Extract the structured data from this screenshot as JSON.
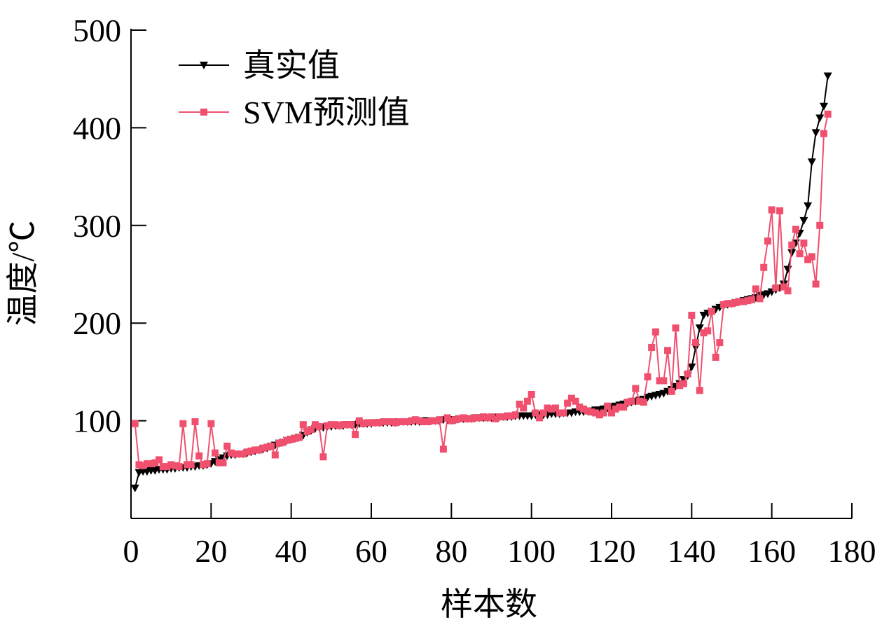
{
  "chart_data": {
    "type": "line",
    "xlabel": "样本数",
    "ylabel": "温度/℃",
    "x": [
      1,
      2,
      3,
      4,
      5,
      6,
      7,
      8,
      9,
      10,
      11,
      12,
      13,
      14,
      15,
      16,
      17,
      18,
      19,
      20,
      21,
      22,
      23,
      24,
      25,
      26,
      27,
      28,
      29,
      30,
      31,
      32,
      33,
      34,
      35,
      36,
      37,
      38,
      39,
      40,
      41,
      42,
      43,
      44,
      45,
      46,
      47,
      48,
      49,
      50,
      51,
      52,
      53,
      54,
      55,
      56,
      57,
      58,
      59,
      60,
      61,
      62,
      63,
      64,
      65,
      66,
      67,
      68,
      69,
      70,
      71,
      72,
      73,
      74,
      75,
      76,
      77,
      78,
      79,
      80,
      81,
      82,
      83,
      84,
      85,
      86,
      87,
      88,
      89,
      90,
      91,
      92,
      93,
      94,
      95,
      96,
      97,
      98,
      99,
      100,
      101,
      102,
      103,
      104,
      105,
      106,
      107,
      108,
      109,
      110,
      111,
      112,
      113,
      114,
      115,
      116,
      117,
      118,
      119,
      120,
      121,
      122,
      123,
      124,
      125,
      126,
      127,
      128,
      129,
      130,
      131,
      132,
      133,
      134,
      135,
      136,
      137,
      138,
      139,
      140,
      141,
      142,
      143,
      144,
      145,
      146,
      147,
      148,
      149,
      150,
      151,
      152,
      153,
      154,
      155,
      156,
      157,
      158,
      159,
      160,
      161,
      162,
      163,
      164,
      165,
      166,
      167,
      168,
      169,
      170,
      171,
      172,
      173,
      174
    ],
    "series": [
      {
        "name": "真实值",
        "color": "#000000",
        "marker": "triangle-down",
        "values": [
          31,
          47,
          48,
          48,
          49,
          49,
          50,
          50,
          50,
          51,
          51,
          52,
          52,
          52,
          53,
          53,
          54,
          54,
          55,
          56,
          58,
          60,
          62,
          64,
          65,
          65,
          66,
          66,
          67,
          68,
          69,
          70,
          71,
          72,
          74,
          75,
          77,
          78,
          80,
          81,
          82,
          83,
          85,
          88,
          90,
          92,
          93,
          93,
          94,
          94,
          95,
          95,
          95,
          96,
          96,
          96,
          97,
          97,
          97,
          97,
          98,
          98,
          98,
          98,
          98,
          98,
          99,
          99,
          99,
          99,
          99,
          99,
          100,
          100,
          100,
          100,
          100,
          101,
          101,
          101,
          101,
          102,
          102,
          102,
          102,
          103,
          103,
          103,
          103,
          103,
          103,
          104,
          104,
          104,
          104,
          105,
          105,
          105,
          105,
          105,
          106,
          106,
          106,
          106,
          107,
          107,
          107,
          108,
          108,
          108,
          109,
          109,
          109,
          110,
          110,
          111,
          111,
          112,
          113,
          114,
          115,
          116,
          117,
          118,
          119,
          120,
          121,
          122,
          124,
          125,
          126,
          127,
          128,
          130,
          132,
          135,
          138,
          142,
          146,
          155,
          175,
          195,
          208,
          210,
          212,
          214,
          216,
          218,
          219,
          220,
          221,
          222,
          223,
          224,
          225,
          226,
          228,
          229,
          230,
          232,
          234,
          236,
          240,
          255,
          272,
          282,
          292,
          305,
          320,
          365,
          395,
          410,
          422,
          453
        ]
      },
      {
        "name": "SVM预测值",
        "color": "#f0506e",
        "marker": "square",
        "values": [
          97,
          55,
          54,
          56,
          56,
          57,
          60,
          53,
          53,
          55,
          54,
          53,
          97,
          55,
          55,
          99,
          64,
          55,
          56,
          97,
          67,
          57,
          57,
          74,
          67,
          66,
          66,
          66,
          68,
          69,
          70,
          70,
          72,
          73,
          74,
          65,
          77,
          78,
          80,
          81,
          82,
          83,
          96,
          89,
          91,
          96,
          94,
          63,
          95,
          96,
          96,
          95,
          96,
          96,
          96,
          86,
          100,
          97,
          98,
          98,
          98,
          98,
          99,
          99,
          99,
          98,
          99,
          99,
          99,
          100,
          101,
          100,
          99,
          99,
          100,
          100,
          101,
          71,
          103,
          100,
          101,
          102,
          103,
          102,
          102,
          103,
          103,
          104,
          103,
          104,
          102,
          104,
          104,
          105,
          105,
          106,
          117,
          113,
          120,
          127,
          108,
          103,
          108,
          113,
          112,
          113,
          108,
          108,
          118,
          123,
          120,
          114,
          112,
          110,
          109,
          108,
          106,
          108,
          115,
          108,
          112,
          114,
          114,
          119,
          120,
          133,
          120,
          119,
          145,
          175,
          191,
          141,
          141,
          172,
          130,
          195,
          136,
          138,
          148,
          208,
          180,
          131,
          190,
          192,
          212,
          165,
          180,
          219,
          220,
          220,
          221,
          222,
          222,
          223,
          224,
          235,
          225,
          257,
          284,
          316,
          236,
          315,
          237,
          233,
          280,
          296,
          271,
          282,
          265,
          268,
          240,
          300,
          394,
          414
        ]
      }
    ],
    "xlim": [
      0,
      180
    ],
    "xticks": [
      0,
      20,
      40,
      60,
      80,
      100,
      120,
      140,
      160,
      180
    ],
    "ylim": [
      0,
      500
    ],
    "yticks": [
      100,
      200,
      300,
      400,
      500
    ],
    "legend": "upper left",
    "grid": false
  }
}
